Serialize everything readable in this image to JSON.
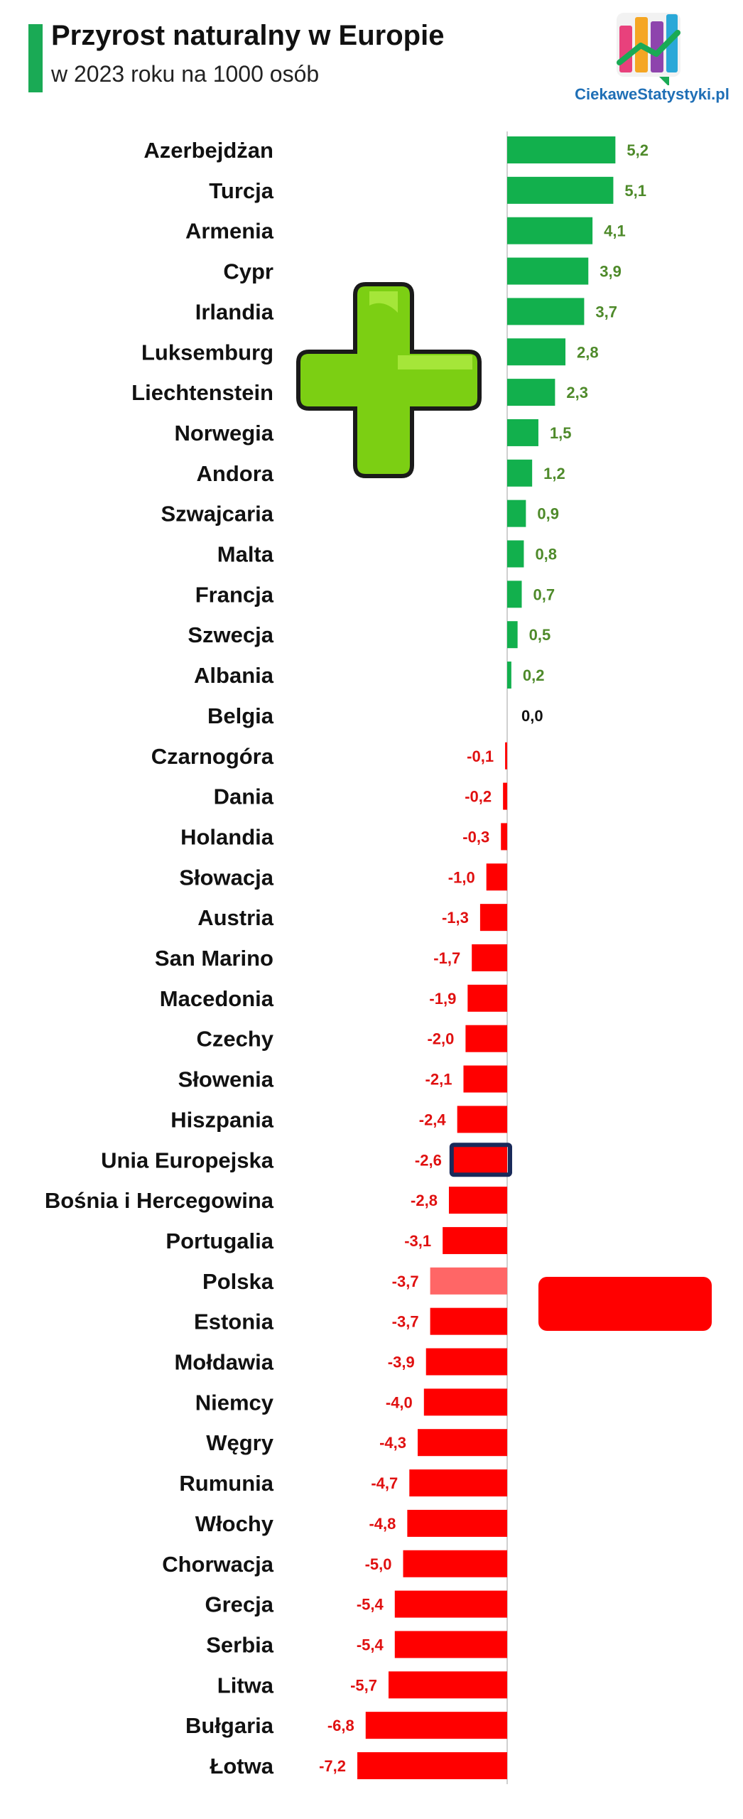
{
  "header": {
    "title": "Przyrost naturalny w Europie",
    "subtitle": "w 2023 roku na 1000 osób",
    "accent_color": "#1aaa55"
  },
  "logo": {
    "text": "CiekaweStatystyki.pl",
    "icon": "bar-chart-logo-icon"
  },
  "decorations": {
    "plus_icon": "green-plus-icon",
    "minus_icon": "red-minus-icon"
  },
  "colors": {
    "positive": "#12b04d",
    "positive_label": "#4e8a2a",
    "negative": "#ff0000",
    "negative_label": "#e01010",
    "zero_label": "#111111",
    "highlight_poland": "#ff6666",
    "highlight_eu_border": "#1a2a5a"
  },
  "chart_data": {
    "type": "bar",
    "orientation": "horizontal",
    "title": "Przyrost naturalny w Europie",
    "subtitle": "w 2023 roku na 1000 osób",
    "xlabel": "",
    "ylabel": "",
    "xlim": [
      -7.2,
      5.2
    ],
    "grid": false,
    "categories": [
      "Azerbejdżan",
      "Turcja",
      "Armenia",
      "Cypr",
      "Irlandia",
      "Luksemburg",
      "Liechtenstein",
      "Norwegia",
      "Andora",
      "Szwajcaria",
      "Malta",
      "Francja",
      "Szwecja",
      "Albania",
      "Belgia",
      "Czarnogóra",
      "Dania",
      "Holandia",
      "Słowacja",
      "Austria",
      "San Marino",
      "Macedonia",
      "Czechy",
      "Słowenia",
      "Hiszpania",
      "Unia Europejska",
      "Bośnia i Hercegowina",
      "Portugalia",
      "Polska",
      "Estonia",
      "Mołdawia",
      "Niemcy",
      "Węgry",
      "Rumunia",
      "Włochy",
      "Chorwacja",
      "Grecja",
      "Serbia",
      "Litwa",
      "Bułgaria",
      "Łotwa"
    ],
    "values": [
      5.2,
      5.1,
      4.1,
      3.9,
      3.7,
      2.8,
      2.3,
      1.5,
      1.2,
      0.9,
      0.8,
      0.7,
      0.5,
      0.2,
      0.0,
      -0.1,
      -0.2,
      -0.3,
      -1.0,
      -1.3,
      -1.7,
      -1.9,
      -2.0,
      -2.1,
      -2.4,
      -2.6,
      -2.8,
      -3.1,
      -3.7,
      -3.7,
      -3.9,
      -4.0,
      -4.3,
      -4.7,
      -4.8,
      -5.0,
      -5.4,
      -5.4,
      -5.7,
      -6.8,
      -7.2
    ],
    "value_labels": [
      "5,2",
      "5,1",
      "4,1",
      "3,9",
      "3,7",
      "2,8",
      "2,3",
      "1,5",
      "1,2",
      "0,9",
      "0,8",
      "0,7",
      "0,5",
      "0,2",
      "0,0",
      "-0,1",
      "-0,2",
      "-0,3",
      "-1,0",
      "-1,3",
      "-1,7",
      "-1,9",
      "-2,0",
      "-2,1",
      "-2,4",
      "-2,6",
      "-2,8",
      "-3,1",
      "-3,7",
      "-3,7",
      "-3,9",
      "-4,0",
      "-4,3",
      "-4,7",
      "-4,8",
      "-5,0",
      "-5,4",
      "-5,4",
      "-5,7",
      "-6,8",
      "-7,2"
    ],
    "highlighted": {
      "Polska": "lighter-red",
      "Unia Europejska": "outlined"
    }
  }
}
